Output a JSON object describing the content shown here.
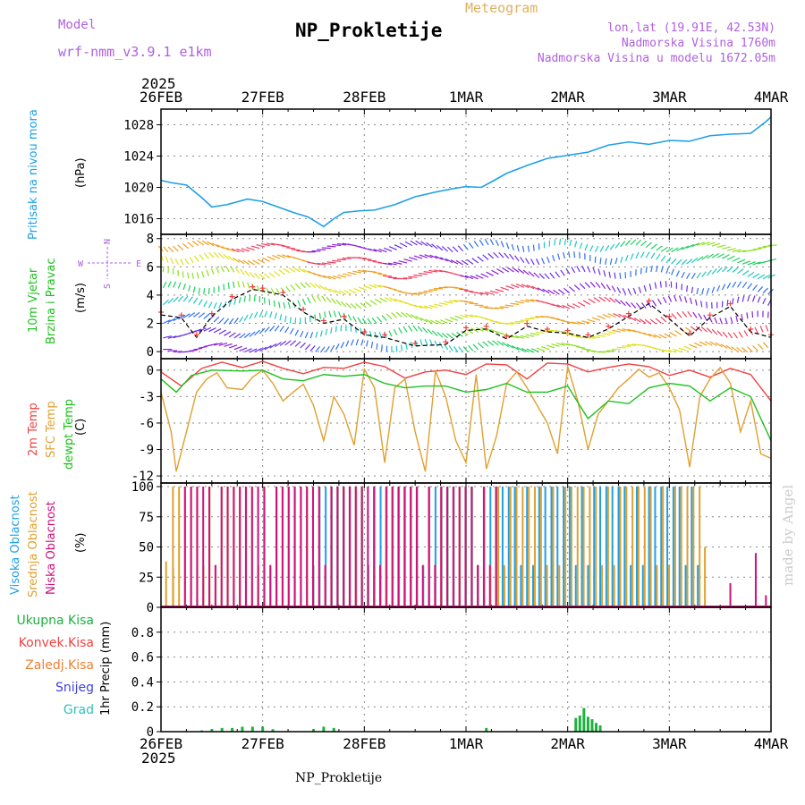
{
  "header": {
    "model_label": "Model",
    "model_name": "wrf-nmm_v3.9.1 e1km",
    "product": "Meteogram",
    "station": "NP_Prokletije",
    "lonlat": "lon,lat (19.91E, 42.53N)",
    "altitude": "Nadmorska Visina 1760m",
    "model_altitude": "Nadmorska Visina u modelu 1672.05m",
    "footer_station": "NP_Prokletije",
    "credit": "made by Angel"
  },
  "colors": {
    "pressure": "#1ea0e6",
    "temp2m": "#f04040",
    "sfc": "#e0a030",
    "dewpt": "#20c020",
    "high": "#1ea0e6",
    "mid": "#e0a030",
    "low": "#d0107a",
    "rain": "#20b040",
    "conv": "#f04040",
    "frz": "#f08030",
    "snow": "#4040e0",
    "grad": "#30c0c0",
    "model": "#b060e0"
  },
  "chart_data": [
    {
      "type": "line",
      "panel": "pressure",
      "year_top": "2025",
      "x_ticks": [
        "26FEB",
        "27FEB",
        "28FEB",
        "1MAR",
        "2MAR",
        "3MAR",
        "4MAR"
      ],
      "ylabel": "(hPa)",
      "side_labels": [
        "Pritisak na nivou mora"
      ],
      "ylim": [
        1014,
        1030
      ],
      "yticks": [
        1016,
        1020,
        1024,
        1028
      ],
      "series": [
        {
          "name": "Pritisak na nivou mora",
          "x": [
            0,
            0.1,
            0.25,
            0.4,
            0.5,
            0.65,
            0.85,
            1.0,
            1.15,
            1.3,
            1.45,
            1.6,
            1.7,
            1.8,
            1.95,
            2.1,
            2.3,
            2.5,
            2.7,
            2.9,
            3.0,
            3.15,
            3.25,
            3.4,
            3.6,
            3.8,
            4.0,
            4.2,
            4.4,
            4.6,
            4.8,
            5.0,
            5.2,
            5.4,
            5.6,
            5.8,
            5.95,
            6.0
          ],
          "values": [
            1020.9,
            1020.6,
            1020.3,
            1018.7,
            1017.5,
            1017.8,
            1018.5,
            1018.2,
            1017.5,
            1016.8,
            1016.2,
            1015.0,
            1016.0,
            1016.8,
            1017.0,
            1017.1,
            1017.8,
            1018.8,
            1019.4,
            1019.9,
            1020.1,
            1020.0,
            1020.7,
            1021.8,
            1022.8,
            1023.7,
            1024.1,
            1024.5,
            1025.4,
            1025.8,
            1025.5,
            1026.0,
            1025.9,
            1026.6,
            1026.8,
            1026.9,
            1028.4,
            1029.0
          ]
        }
      ]
    },
    {
      "type": "line",
      "panel": "wind",
      "ylabel": "(m/s)",
      "side_labels": [
        "10m Vjetar",
        "Brzina i Pravac"
      ],
      "compass": [
        "N",
        "S",
        "W",
        "E"
      ],
      "ylim": [
        -0.5,
        8.3
      ],
      "yticks": [
        0,
        2,
        4,
        6,
        8
      ],
      "series": [
        {
          "name": "Brzina i Pravac",
          "x": [
            0,
            0.2,
            0.35,
            0.5,
            0.7,
            0.9,
            1.0,
            1.2,
            1.4,
            1.6,
            1.8,
            2.0,
            2.2,
            2.5,
            2.8,
            3.0,
            3.2,
            3.4,
            3.6,
            3.8,
            4.0,
            4.2,
            4.4,
            4.6,
            4.8,
            5.0,
            5.2,
            5.4,
            5.6,
            5.8,
            6.0
          ],
          "values": [
            2.6,
            2.4,
            1.0,
            2.5,
            3.7,
            4.4,
            4.3,
            4.0,
            2.8,
            2.0,
            2.3,
            1.2,
            1.0,
            0.4,
            0.5,
            1.5,
            1.6,
            0.9,
            1.8,
            1.4,
            1.3,
            1.0,
            1.6,
            2.5,
            3.4,
            2.3,
            1.1,
            2.4,
            3.2,
            1.4,
            1.0
          ]
        }
      ]
    },
    {
      "type": "line",
      "panel": "temperature",
      "ylabel": "(C)",
      "side_labels": [
        "2m Temp",
        "SFC Temp",
        "dewpt Temp"
      ],
      "ylim": [
        -12.8,
        1.3
      ],
      "yticks": [
        0,
        -3,
        -6,
        -9,
        -12
      ],
      "series": [
        {
          "name": "2m Temp",
          "x": [
            0,
            0.2,
            0.4,
            0.6,
            0.8,
            1.0,
            1.2,
            1.4,
            1.6,
            1.8,
            2.0,
            2.2,
            2.4,
            2.6,
            2.8,
            3.0,
            3.2,
            3.4,
            3.6,
            3.8,
            4.0,
            4.2,
            4.4,
            4.6,
            4.8,
            5.0,
            5.2,
            5.4,
            5.6,
            5.8,
            6.0
          ],
          "values": [
            -0.2,
            -1.8,
            0.2,
            0.9,
            0.3,
            1.0,
            0.2,
            -0.4,
            0.3,
            0.2,
            0.9,
            0.4,
            -0.9,
            -0.2,
            0.0,
            -0.5,
            0.7,
            0.6,
            -1.0,
            0.8,
            0.7,
            -0.2,
            0.3,
            0.7,
            0.4,
            -0.6,
            0.0,
            -0.8,
            0.2,
            -0.5,
            -3.5
          ]
        },
        {
          "name": "SFC Temp",
          "x": [
            0,
            0.1,
            0.15,
            0.25,
            0.35,
            0.45,
            0.55,
            0.65,
            0.8,
            0.9,
            1.0,
            1.1,
            1.2,
            1.3,
            1.4,
            1.5,
            1.6,
            1.7,
            1.8,
            1.9,
            2.0,
            2.1,
            2.2,
            2.3,
            2.4,
            2.5,
            2.6,
            2.7,
            2.8,
            2.9,
            3.0,
            3.1,
            3.2,
            3.3,
            3.4,
            3.5,
            3.6,
            3.7,
            3.8,
            3.9,
            4.0,
            4.1,
            4.2,
            4.3,
            4.4,
            4.5,
            4.6,
            4.7,
            4.8,
            4.9,
            5.0,
            5.1,
            5.2,
            5.3,
            5.4,
            5.5,
            5.6,
            5.7,
            5.8,
            5.9,
            6.0
          ],
          "values": [
            -2.5,
            -7.0,
            -11.5,
            -7.0,
            -2.5,
            -1.0,
            -0.3,
            -2.0,
            -2.2,
            -0.8,
            0.0,
            -1.5,
            -3.5,
            -2.5,
            -1.6,
            -4.0,
            -8.0,
            -3.0,
            -5.0,
            -8.5,
            0.1,
            -2.0,
            -10.5,
            -2.0,
            -1.0,
            -7.0,
            -11.5,
            -0.1,
            -3.0,
            -8.0,
            -10.5,
            -0.5,
            -11.2,
            -7.5,
            -1.5,
            -0.2,
            -2.0,
            -4.0,
            -6.0,
            -9.5,
            0.4,
            -3.5,
            -9.0,
            -5.0,
            -3.5,
            -2.0,
            -1.0,
            0.1,
            -0.8,
            -0.3,
            -2.0,
            -4.5,
            -11.0,
            -3.0,
            -1.0,
            0.3,
            -1.5,
            -7.0,
            -3.5,
            -9.5,
            -10.0
          ]
        },
        {
          "name": "dewpt Temp",
          "x": [
            0,
            0.15,
            0.3,
            0.5,
            0.8,
            1.0,
            1.2,
            1.4,
            1.6,
            1.8,
            2.0,
            2.2,
            2.4,
            2.6,
            2.8,
            3.0,
            3.2,
            3.4,
            3.6,
            3.8,
            4.0,
            4.2,
            4.4,
            4.6,
            4.8,
            5.0,
            5.2,
            5.4,
            5.6,
            5.8,
            6.0
          ],
          "values": [
            -1.0,
            -2.5,
            -0.6,
            0.0,
            -0.1,
            0.0,
            -1.0,
            -1.2,
            -0.5,
            -0.7,
            -0.5,
            -1.5,
            -2.0,
            -1.8,
            -1.8,
            -2.5,
            -2.2,
            -1.5,
            -2.5,
            -2.5,
            -1.8,
            -5.5,
            -3.5,
            -3.8,
            -2.0,
            -1.5,
            -1.8,
            -3.5,
            -2.0,
            -3.0,
            -8.0
          ]
        }
      ]
    },
    {
      "type": "bar",
      "panel": "clouds",
      "ylabel": "(%)",
      "side_labels": [
        "Visoka Oblacnost",
        "Srednja Oblacnost",
        "Niska Oblacnost"
      ],
      "ylim": [
        0,
        103
      ],
      "yticks": [
        0,
        25,
        50,
        75,
        100
      ],
      "series": [
        {
          "name": "Visoka Oblacnost",
          "segments": [
            [
              1.5,
              5.3,
              100
            ]
          ]
        },
        {
          "name": "Srednja Oblacnost",
          "segments": [
            [
              0.1,
              3.3,
              100
            ],
            [
              3.3,
              5.3,
              100
            ]
          ],
          "sparse": [
            [
              0.05,
              38
            ],
            [
              0.12,
              32
            ],
            [
              5.35,
              50
            ]
          ]
        },
        {
          "name": "Niska Oblacnost",
          "segments": [
            [
              0.2,
              3.3,
              100
            ]
          ],
          "sparse": [
            [
              5.6,
              20
            ],
            [
              5.85,
              45
            ],
            [
              5.95,
              10
            ]
          ]
        }
      ]
    },
    {
      "type": "bar",
      "panel": "precip",
      "ylabel": "1hr Precip (mm)",
      "side_labels": [
        "Ukupna Kisa",
        "Konvek.Kisa",
        "Zaledj.Kisa",
        "Snijeg",
        "Grad"
      ],
      "ylim": [
        0,
        1.0
      ],
      "yticks": [
        0,
        0.2,
        0.4,
        0.6,
        0.8
      ],
      "year_bottom": "2025",
      "series": [
        {
          "name": "Ukupna Kisa",
          "x": [
            0.4,
            0.5,
            0.6,
            0.7,
            0.8,
            0.9,
            1.0,
            1.1,
            1.5,
            1.6,
            1.7,
            3.2,
            4.08,
            4.12,
            4.16,
            4.2,
            4.24,
            4.28,
            4.32
          ],
          "values": [
            0.01,
            0.02,
            0.03,
            0.03,
            0.04,
            0.04,
            0.04,
            0.02,
            0.02,
            0.04,
            0.03,
            0.03,
            0.11,
            0.13,
            0.19,
            0.12,
            0.1,
            0.07,
            0.05
          ]
        }
      ]
    }
  ]
}
